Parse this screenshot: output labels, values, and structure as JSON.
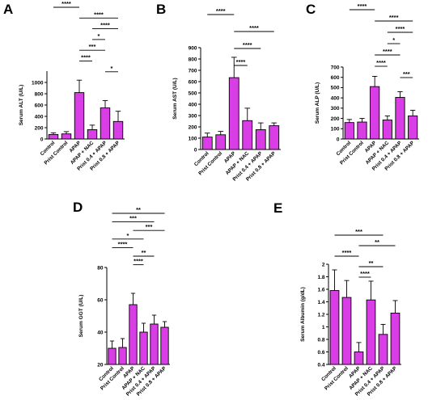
{
  "panel_color": "#d93de6",
  "chart_data": [
    {
      "type": "bar",
      "letter": "A",
      "ylabel": "Serum ALT (U/L)",
      "categories": [
        "Control",
        "Prist Control",
        "APAP",
        "APAP + NAC",
        "Prist 0.4 + APAP",
        "Prist 0.8 + APAP"
      ],
      "values": [
        80,
        90,
        820,
        165,
        550,
        310
      ],
      "errors": [
        30,
        40,
        220,
        80,
        130,
        180
      ],
      "ylim": [
        0,
        1200
      ],
      "yticks": [
        0,
        200,
        400,
        600,
        800,
        1000
      ],
      "significance": [
        {
          "from": 0,
          "to": 2,
          "label": "****"
        },
        {
          "from": 2,
          "to": 5,
          "label": "****"
        },
        {
          "from": 3,
          "to": 5,
          "label": "****"
        },
        {
          "from": 3,
          "to": 4,
          "label": "*"
        },
        {
          "from": 2,
          "to": 4,
          "label": "***"
        },
        {
          "from": 2,
          "to": 3,
          "label": "****"
        },
        {
          "from": 4,
          "to": 5,
          "label": "*"
        }
      ]
    },
    {
      "type": "bar",
      "letter": "B",
      "ylabel": "Serum AST (U/L)",
      "categories": [
        "Control",
        "Prist Control",
        "APAP",
        "APAP + NAC",
        "Prist 0.4 + APAP",
        "Prist 0.8 + APAP"
      ],
      "values": [
        110,
        130,
        635,
        255,
        175,
        210
      ],
      "errors": [
        35,
        30,
        180,
        110,
        60,
        25
      ],
      "ylim": [
        0,
        900
      ],
      "yticks": [
        0,
        100,
        200,
        300,
        400,
        500,
        600,
        700,
        800,
        900
      ],
      "significance": [
        {
          "from": 0,
          "to": 2,
          "label": "****"
        },
        {
          "from": 2,
          "to": 5,
          "label": "****"
        },
        {
          "from": 2,
          "to": 4,
          "label": "****"
        },
        {
          "from": 2,
          "to": 3,
          "label": "****"
        }
      ]
    },
    {
      "type": "bar",
      "letter": "C",
      "ylabel": "Serum ALP (U/L)",
      "categories": [
        "Control",
        "Prist Control",
        "APAP",
        "APAP + NAC",
        "Prist 0.4 + APAP",
        "Prist 0.8 + APAP"
      ],
      "values": [
        160,
        165,
        510,
        185,
        405,
        225
      ],
      "errors": [
        30,
        35,
        100,
        40,
        55,
        55
      ],
      "ylim": [
        0,
        700
      ],
      "yticks": [
        0,
        100,
        200,
        300,
        400,
        500,
        600,
        700
      ],
      "significance": [
        {
          "from": 0,
          "to": 2,
          "label": "****"
        },
        {
          "from": 2,
          "to": 5,
          "label": "****"
        },
        {
          "from": 3,
          "to": 5,
          "label": "****"
        },
        {
          "from": 3,
          "to": 4,
          "label": "*"
        },
        {
          "from": 2,
          "to": 4,
          "label": "****"
        },
        {
          "from": 2,
          "to": 3,
          "label": "****"
        },
        {
          "from": 4,
          "to": 5,
          "label": "***"
        }
      ]
    },
    {
      "type": "bar",
      "letter": "D",
      "ylabel": "Serum GGT (U/L)",
      "categories": [
        "Control",
        "Prist Control",
        "APAP",
        "APAP + NAC",
        "Prist 0.4 + APAP",
        "Prist 0.8 + APAP"
      ],
      "values": [
        30,
        30.5,
        57,
        40,
        45,
        43
      ],
      "errors": [
        4.5,
        5.5,
        7,
        5.5,
        5.5,
        3.5
      ],
      "ylim": [
        20,
        80
      ],
      "yticks": [
        20,
        40,
        60,
        80
      ],
      "significance": [
        {
          "from": 0,
          "to": 5,
          "label": "**"
        },
        {
          "from": 0,
          "to": 4,
          "label": "***"
        },
        {
          "from": 2,
          "to": 5,
          "label": "***"
        },
        {
          "from": 0,
          "to": 3,
          "label": "*"
        },
        {
          "from": 0,
          "to": 2,
          "label": "****"
        },
        {
          "from": 2,
          "to": 4,
          "label": "**"
        },
        {
          "from": 2,
          "to": 3,
          "label": "****"
        }
      ]
    },
    {
      "type": "bar",
      "letter": "E",
      "ylabel": "Serum Albumin (g/dL)",
      "categories": [
        "Control",
        "Prist Control",
        "APAP",
        "APAP + NAC",
        "Prist 0.4 + APAP",
        "Prist 0.8 + APAP"
      ],
      "values": [
        1.58,
        1.47,
        0.6,
        1.43,
        0.88,
        1.22
      ],
      "errors": [
        0.33,
        0.27,
        0.15,
        0.3,
        0.16,
        0.2
      ],
      "ylim": [
        0.4,
        2.0
      ],
      "yticks": [
        0.4,
        0.6,
        0.8,
        1.0,
        1.2,
        1.4,
        1.6,
        1.8,
        2.0
      ],
      "significance": [
        {
          "from": 0,
          "to": 4,
          "label": "***"
        },
        {
          "from": 2,
          "to": 5,
          "label": "**"
        },
        {
          "from": 0,
          "to": 2,
          "label": "****"
        },
        {
          "from": 2,
          "to": 4,
          "label": "**"
        },
        {
          "from": 2,
          "to": 3,
          "label": "****"
        }
      ]
    }
  ]
}
